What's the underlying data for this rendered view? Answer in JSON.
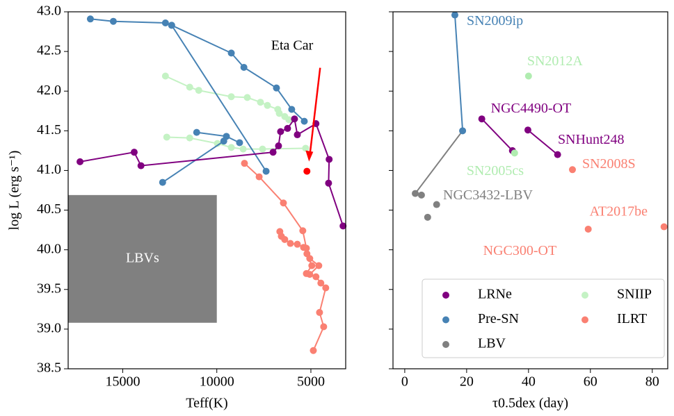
{
  "chart_data": [
    {
      "type": "line",
      "xlabel": "Teff(K)",
      "ylabel": "log L (erg s⁻¹)",
      "xlim": [
        17900,
        3150
      ],
      "ylim": [
        38.5,
        43
      ],
      "xticks": [
        15000,
        10000,
        5000
      ],
      "yticks": [
        {
          "value": 38.5,
          "label": "38.5"
        },
        {
          "value": 39,
          "label": "39.0"
        },
        39.5,
        {
          "value": 40,
          "label": "40.0"
        },
        40.5,
        {
          "value": 41,
          "label": "41.0"
        },
        41.5,
        {
          "value": 42,
          "label": "42.0"
        },
        42.5,
        {
          "value": 43,
          "label": "43.0"
        }
      ],
      "region": {
        "label": "LBVs",
        "color": "#808080",
        "xlim": [
          17900,
          10000
        ],
        "ylim": [
          39.08,
          40.69
        ]
      },
      "series": [
        {
          "color": "#c4f2c4",
          "x": [
            12730,
            11440,
            10960,
            9230,
            8380,
            7680,
            7310,
            6760,
            6680,
            6390,
            6170,
            null,
            12660,
            11440,
            9970,
            9230,
            8600,
            7570,
            5280
          ],
          "values": [
            42.19,
            42.05,
            42.01,
            41.93,
            41.92,
            41.86,
            41.82,
            41.77,
            41.72,
            41.68,
            41.64,
            null,
            41.42,
            41.41,
            41.34,
            41.29,
            41.27,
            41.27,
            41.28
          ]
        },
        {
          "color": "#4682b4",
          "x": [
            16720,
            15500,
            12730,
            12400,
            9230,
            8560,
            6830,
            6020,
            5350,
            null,
            12400,
            7380,
            null,
            11070,
            9490,
            8790,
            null,
            12880,
            9630
          ],
          "values": [
            42.91,
            42.88,
            42.86,
            42.83,
            42.48,
            42.3,
            42.04,
            41.77,
            41.62,
            null,
            42.83,
            40.99,
            null,
            41.48,
            41.43,
            41.35,
            null,
            40.85,
            41.37
          ]
        },
        {
          "color": "#800080",
          "x": [
            17270,
            14390,
            14030,
            7010,
            6720,
            6610,
            6240,
            5870,
            5720,
            4730,
            4030,
            4060,
            3290
          ],
          "values": [
            41.11,
            41.23,
            41.06,
            41.23,
            41.31,
            41.49,
            41.53,
            41.65,
            41.45,
            41.59,
            41.14,
            40.84,
            40.3
          ]
        },
        {
          "color": "#fa8072",
          "x": [
            8530,
            7750,
            6460,
            5430,
            5240,
            5060,
            4580,
            5060,
            null,
            6650,
            6570,
            6390,
            6090,
            5720,
            5390,
            5210,
            4950,
            5240,
            4730,
            4470,
            4210,
            4540,
            4320,
            4870
          ],
          "values": [
            41.09,
            40.92,
            40.59,
            40.24,
            40.02,
            39.89,
            39.8,
            39.69,
            null,
            40.23,
            40.17,
            40.13,
            40.08,
            40.07,
            40.03,
            39.95,
            39.8,
            39.7,
            39.66,
            39.58,
            39.52,
            39.21,
            39.03,
            38.73
          ]
        }
      ],
      "annotation": {
        "label": "Eta Car",
        "color": "#ff0000",
        "x": 5210,
        "y": 40.99
      }
    },
    {
      "type": "scatter",
      "xlabel": "τ0.5dex (day)",
      "xlim": [
        -3.8,
        85
      ],
      "ylim": [
        38.5,
        43
      ],
      "xticks": [
        0,
        20,
        40,
        60,
        80
      ],
      "objects": [
        {
          "name": "SN2009ip",
          "color": "#4682b4",
          "x": [
            16.2,
            18.7
          ],
          "values": [
            42.96,
            41.5
          ]
        },
        {
          "name": "SN2012A",
          "color": "#b0ecb0",
          "x": [
            40.0
          ],
          "values": [
            42.19
          ]
        },
        {
          "name": "NGC4490-OT",
          "color": "#800080",
          "x": [
            24.9,
            34.8
          ],
          "values": [
            41.65,
            41.25
          ]
        },
        {
          "name": "SNHunt248",
          "color": "#800080",
          "x": [
            39.8,
            49.4
          ],
          "values": [
            41.51,
            41.2
          ]
        },
        {
          "name": "SN2005cs",
          "color": "#b0ecb0",
          "x": [
            35.5
          ],
          "values": [
            41.22
          ]
        },
        {
          "name": "SN2008S",
          "color": "#fa8072",
          "x": [
            54.2
          ],
          "values": [
            41.01
          ]
        },
        {
          "name": "NGC3432-LBV",
          "color": "#808080",
          "x": [
            3.4,
            5.4,
            10.3,
            7.4
          ],
          "values": [
            40.71,
            40.69,
            40.57,
            40.41
          ]
        },
        {
          "name": "AT2017be",
          "color": "#fa8072",
          "x": [
            59.3
          ],
          "values": [
            40.26
          ]
        },
        {
          "name": "NGC300-OT",
          "color": "#fa8072",
          "x": [
            83.8
          ],
          "values": [
            40.29
          ]
        }
      ],
      "legend": [
        {
          "name": "LRNe",
          "color": "#800080"
        },
        {
          "name": "Pre-SN",
          "color": "#4682b4"
        },
        {
          "name": "LBV",
          "color": "#808080"
        },
        {
          "name": "SNIIP",
          "color": "#c4f2c4"
        },
        {
          "name": "ILRT",
          "color": "#fa8072"
        }
      ]
    }
  ]
}
